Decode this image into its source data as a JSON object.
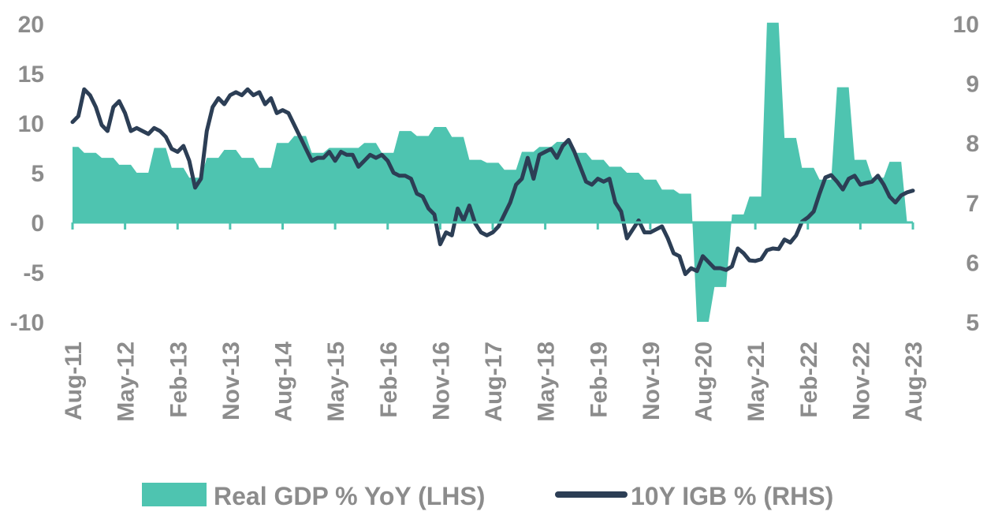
{
  "colors": {
    "gdp": "#4ec4b0",
    "igb": "#2c3e55",
    "tick_text": "#8c8c8c"
  },
  "legend": {
    "gdp_label": "Real GDP % YoY (LHS)",
    "igb_label": "10Y IGB % (RHS)"
  },
  "chart_data": {
    "type": "area+line",
    "x_tick_labels": [
      "Aug-11",
      "May-12",
      "Feb-13",
      "Nov-13",
      "Aug-14",
      "May-15",
      "Feb-16",
      "Nov-16",
      "Aug-17",
      "May-18",
      "Feb-19",
      "Nov-19",
      "Aug-20",
      "May-21",
      "Feb-22",
      "Nov-22",
      "Aug-23"
    ],
    "x_range": [
      "2011-08",
      "2023-08"
    ],
    "y_left": {
      "range": [
        -10,
        20
      ],
      "ticks": [
        20,
        15,
        10,
        5,
        0,
        -5,
        -10
      ]
    },
    "y_right": {
      "range": [
        5,
        10
      ],
      "ticks": [
        10,
        9,
        8,
        7,
        6,
        5
      ]
    },
    "legend_position": "bottom",
    "grid": false,
    "series": [
      {
        "name": "Real GDP % YoY (LHS)",
        "type": "area",
        "axis": "left",
        "points": [
          [
            "2011-08",
            7.6
          ],
          [
            "2011-09",
            7.6
          ],
          [
            "2011-10",
            7.0
          ],
          [
            "2011-12",
            7.0
          ],
          [
            "2012-01",
            6.5
          ],
          [
            "2012-03",
            6.5
          ],
          [
            "2012-04",
            5.8
          ],
          [
            "2012-06",
            5.8
          ],
          [
            "2012-07",
            5.0
          ],
          [
            "2012-09",
            5.0
          ],
          [
            "2012-10",
            7.5
          ],
          [
            "2012-12",
            7.5
          ],
          [
            "2013-01",
            5.5
          ],
          [
            "2013-03",
            5.5
          ],
          [
            "2013-04",
            4.5
          ],
          [
            "2013-06",
            4.5
          ],
          [
            "2013-07",
            6.5
          ],
          [
            "2013-09",
            6.5
          ],
          [
            "2013-10",
            7.3
          ],
          [
            "2013-12",
            7.3
          ],
          [
            "2014-01",
            6.5
          ],
          [
            "2014-03",
            6.5
          ],
          [
            "2014-04",
            5.5
          ],
          [
            "2014-06",
            5.5
          ],
          [
            "2014-07",
            8.0
          ],
          [
            "2014-09",
            8.0
          ],
          [
            "2014-10",
            8.7
          ],
          [
            "2014-12",
            8.7
          ],
          [
            "2015-01",
            7.0
          ],
          [
            "2015-03",
            7.0
          ],
          [
            "2015-04",
            7.5
          ],
          [
            "2015-06",
            7.5
          ],
          [
            "2015-07",
            7.5
          ],
          [
            "2015-09",
            7.5
          ],
          [
            "2015-10",
            8.0
          ],
          [
            "2015-12",
            8.0
          ],
          [
            "2016-01",
            7.0
          ],
          [
            "2016-03",
            7.0
          ],
          [
            "2016-04",
            9.2
          ],
          [
            "2016-06",
            9.2
          ],
          [
            "2016-07",
            8.7
          ],
          [
            "2016-09",
            8.7
          ],
          [
            "2016-10",
            9.6
          ],
          [
            "2016-12",
            9.6
          ],
          [
            "2017-01",
            8.6
          ],
          [
            "2017-03",
            8.6
          ],
          [
            "2017-04",
            6.3
          ],
          [
            "2017-06",
            6.3
          ],
          [
            "2017-07",
            6.0
          ],
          [
            "2017-09",
            6.0
          ],
          [
            "2017-10",
            5.3
          ],
          [
            "2017-12",
            5.3
          ],
          [
            "2018-01",
            7.1
          ],
          [
            "2018-03",
            7.1
          ],
          [
            "2018-04",
            7.6
          ],
          [
            "2018-06",
            7.6
          ],
          [
            "2018-07",
            8.1
          ],
          [
            "2018-09",
            8.1
          ],
          [
            "2018-10",
            7.0
          ],
          [
            "2018-12",
            7.0
          ],
          [
            "2019-01",
            6.3
          ],
          [
            "2019-03",
            6.3
          ],
          [
            "2019-04",
            5.6
          ],
          [
            "2019-06",
            5.6
          ],
          [
            "2019-07",
            5.0
          ],
          [
            "2019-09",
            5.0
          ],
          [
            "2019-10",
            4.3
          ],
          [
            "2019-12",
            4.3
          ],
          [
            "2020-01",
            3.3
          ],
          [
            "2020-03",
            3.3
          ],
          [
            "2020-04",
            2.9
          ],
          [
            "2020-06",
            2.9
          ],
          [
            "2020-07",
            -10.0
          ],
          [
            "2020-09",
            -10.0
          ],
          [
            "2020-10",
            -6.5
          ],
          [
            "2020-12",
            -6.5
          ],
          [
            "2021-01",
            0.8
          ],
          [
            "2021-03",
            0.8
          ],
          [
            "2021-04",
            2.6
          ],
          [
            "2021-06",
            2.6
          ],
          [
            "2021-07",
            20.1
          ],
          [
            "2021-09",
            20.1
          ],
          [
            "2021-10",
            8.5
          ],
          [
            "2021-12",
            8.5
          ],
          [
            "2022-01",
            5.5
          ],
          [
            "2022-03",
            5.5
          ],
          [
            "2022-04",
            4.3
          ],
          [
            "2022-06",
            4.3
          ],
          [
            "2022-07",
            13.6
          ],
          [
            "2022-09",
            13.6
          ],
          [
            "2022-10",
            6.3
          ],
          [
            "2022-12",
            6.3
          ],
          [
            "2023-01",
            4.5
          ],
          [
            "2023-03",
            4.5
          ],
          [
            "2023-04",
            6.1
          ],
          [
            "2023-06",
            6.1
          ],
          [
            "2023-07",
            0.0
          ],
          [
            "2023-08",
            0.0
          ]
        ]
      },
      {
        "name": "10Y IGB % (RHS)",
        "type": "line",
        "axis": "right",
        "points": [
          [
            "2011-08",
            8.35
          ],
          [
            "2011-09",
            8.45
          ],
          [
            "2011-10",
            8.9
          ],
          [
            "2011-11",
            8.8
          ],
          [
            "2011-12",
            8.6
          ],
          [
            "2012-01",
            8.3
          ],
          [
            "2012-02",
            8.2
          ],
          [
            "2012-03",
            8.6
          ],
          [
            "2012-04",
            8.7
          ],
          [
            "2012-05",
            8.5
          ],
          [
            "2012-06",
            8.2
          ],
          [
            "2012-07",
            8.25
          ],
          [
            "2012-08",
            8.2
          ],
          [
            "2012-09",
            8.15
          ],
          [
            "2012-10",
            8.25
          ],
          [
            "2012-11",
            8.2
          ],
          [
            "2012-12",
            8.1
          ],
          [
            "2013-01",
            7.9
          ],
          [
            "2013-02",
            7.85
          ],
          [
            "2013-03",
            7.95
          ],
          [
            "2013-04",
            7.7
          ],
          [
            "2013-05",
            7.25
          ],
          [
            "2013-06",
            7.4
          ],
          [
            "2013-07",
            8.2
          ],
          [
            "2013-08",
            8.6
          ],
          [
            "2013-09",
            8.75
          ],
          [
            "2013-10",
            8.65
          ],
          [
            "2013-11",
            8.8
          ],
          [
            "2013-12",
            8.85
          ],
          [
            "2014-01",
            8.8
          ],
          [
            "2014-02",
            8.9
          ],
          [
            "2014-03",
            8.8
          ],
          [
            "2014-04",
            8.85
          ],
          [
            "2014-05",
            8.65
          ],
          [
            "2014-06",
            8.75
          ],
          [
            "2014-07",
            8.5
          ],
          [
            "2014-08",
            8.55
          ],
          [
            "2014-09",
            8.5
          ],
          [
            "2014-10",
            8.3
          ],
          [
            "2014-11",
            8.1
          ],
          [
            "2014-12",
            7.9
          ],
          [
            "2015-01",
            7.7
          ],
          [
            "2015-02",
            7.75
          ],
          [
            "2015-03",
            7.75
          ],
          [
            "2015-04",
            7.85
          ],
          [
            "2015-05",
            7.7
          ],
          [
            "2015-06",
            7.85
          ],
          [
            "2015-07",
            7.8
          ],
          [
            "2015-08",
            7.8
          ],
          [
            "2015-09",
            7.6
          ],
          [
            "2015-10",
            7.7
          ],
          [
            "2015-11",
            7.8
          ],
          [
            "2015-12",
            7.75
          ],
          [
            "2016-01",
            7.8
          ],
          [
            "2016-02",
            7.7
          ],
          [
            "2016-03",
            7.5
          ],
          [
            "2016-04",
            7.45
          ],
          [
            "2016-05",
            7.45
          ],
          [
            "2016-06",
            7.4
          ],
          [
            "2016-07",
            7.15
          ],
          [
            "2016-08",
            7.1
          ],
          [
            "2016-09",
            6.9
          ],
          [
            "2016-10",
            6.8
          ],
          [
            "2016-11",
            6.3
          ],
          [
            "2016-12",
            6.5
          ],
          [
            "2017-01",
            6.45
          ],
          [
            "2017-02",
            6.9
          ],
          [
            "2017-03",
            6.7
          ],
          [
            "2017-04",
            6.95
          ],
          [
            "2017-05",
            6.65
          ],
          [
            "2017-06",
            6.5
          ],
          [
            "2017-07",
            6.45
          ],
          [
            "2017-08",
            6.5
          ],
          [
            "2017-09",
            6.6
          ],
          [
            "2017-10",
            6.8
          ],
          [
            "2017-11",
            7.0
          ],
          [
            "2017-12",
            7.3
          ],
          [
            "2018-01",
            7.4
          ],
          [
            "2018-02",
            7.75
          ],
          [
            "2018-03",
            7.4
          ],
          [
            "2018-04",
            7.8
          ],
          [
            "2018-05",
            7.85
          ],
          [
            "2018-06",
            7.9
          ],
          [
            "2018-07",
            7.75
          ],
          [
            "2018-08",
            7.95
          ],
          [
            "2018-09",
            8.05
          ],
          [
            "2018-10",
            7.85
          ],
          [
            "2018-11",
            7.6
          ],
          [
            "2018-12",
            7.35
          ],
          [
            "2019-01",
            7.3
          ],
          [
            "2019-02",
            7.4
          ],
          [
            "2019-03",
            7.35
          ],
          [
            "2019-04",
            7.4
          ],
          [
            "2019-05",
            7.0
          ],
          [
            "2019-06",
            6.85
          ],
          [
            "2019-07",
            6.4
          ],
          [
            "2019-08",
            6.55
          ],
          [
            "2019-09",
            6.7
          ],
          [
            "2019-10",
            6.5
          ],
          [
            "2019-11",
            6.5
          ],
          [
            "2019-12",
            6.55
          ],
          [
            "2020-01",
            6.6
          ],
          [
            "2020-02",
            6.4
          ],
          [
            "2020-03",
            6.15
          ],
          [
            "2020-04",
            6.1
          ],
          [
            "2020-05",
            5.8
          ],
          [
            "2020-06",
            5.9
          ],
          [
            "2020-07",
            5.85
          ],
          [
            "2020-08",
            6.1
          ],
          [
            "2020-09",
            6.0
          ],
          [
            "2020-10",
            5.9
          ],
          [
            "2020-11",
            5.9
          ],
          [
            "2020-12",
            5.87
          ],
          [
            "2021-01",
            5.93
          ],
          [
            "2021-02",
            6.23
          ],
          [
            "2021-03",
            6.15
          ],
          [
            "2021-04",
            6.03
          ],
          [
            "2021-05",
            6.02
          ],
          [
            "2021-06",
            6.05
          ],
          [
            "2021-07",
            6.2
          ],
          [
            "2021-08",
            6.23
          ],
          [
            "2021-09",
            6.22
          ],
          [
            "2021-10",
            6.38
          ],
          [
            "2021-11",
            6.33
          ],
          [
            "2021-12",
            6.45
          ],
          [
            "2022-01",
            6.68
          ],
          [
            "2022-02",
            6.75
          ],
          [
            "2022-03",
            6.85
          ],
          [
            "2022-04",
            7.15
          ],
          [
            "2022-05",
            7.42
          ],
          [
            "2022-06",
            7.46
          ],
          [
            "2022-07",
            7.35
          ],
          [
            "2022-08",
            7.22
          ],
          [
            "2022-09",
            7.4
          ],
          [
            "2022-10",
            7.45
          ],
          [
            "2022-11",
            7.3
          ],
          [
            "2022-12",
            7.33
          ],
          [
            "2023-01",
            7.35
          ],
          [
            "2023-02",
            7.45
          ],
          [
            "2023-03",
            7.3
          ],
          [
            "2023-04",
            7.1
          ],
          [
            "2023-05",
            7.0
          ],
          [
            "2023-06",
            7.12
          ],
          [
            "2023-07",
            7.17
          ],
          [
            "2023-08",
            7.2
          ]
        ]
      }
    ]
  }
}
